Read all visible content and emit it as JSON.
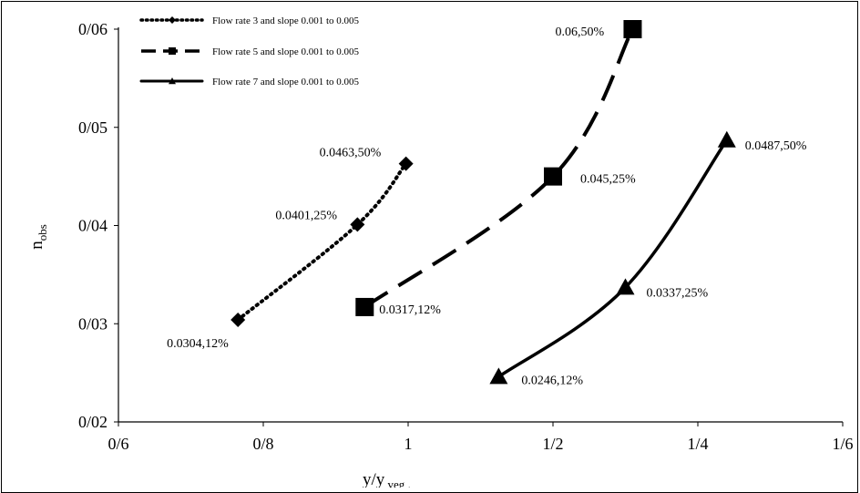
{
  "chart_data": {
    "type": "line",
    "xlabel_main": "y/y",
    "xlabel_sub": "veg",
    "xlabel_tail": " .",
    "ylabel_main": "n",
    "ylabel_sub": "obs",
    "xlim": [
      0.6,
      1.6
    ],
    "ylim": [
      0.02,
      0.06
    ],
    "x_ticks": [
      {
        "value": 0.6,
        "label": "0/6"
      },
      {
        "value": 0.8,
        "label": "0/8"
      },
      {
        "value": 1.0,
        "label": "1"
      },
      {
        "value": 1.2,
        "label": "1/2"
      },
      {
        "value": 1.4,
        "label": "1/4"
      },
      {
        "value": 1.6,
        "label": "1/6"
      }
    ],
    "y_ticks": [
      {
        "value": 0.02,
        "label": "0/02"
      },
      {
        "value": 0.03,
        "label": "0/03"
      },
      {
        "value": 0.04,
        "label": "0/04"
      },
      {
        "value": 0.05,
        "label": "0/05"
      },
      {
        "value": 0.06,
        "label": "0/06"
      }
    ],
    "grid": false,
    "legend_position": "top-left",
    "series": [
      {
        "name": "Flow rate 3 and slope 0.001 to 0.005",
        "line_style": "dotted",
        "marker": "diamond",
        "color": "#000000",
        "points": [
          {
            "x": 0.765,
            "y": 0.0304,
            "label": "0.0304,12%"
          },
          {
            "x": 0.93,
            "y": 0.0401,
            "label": "0.0401,25%"
          },
          {
            "x": 0.997,
            "y": 0.0463,
            "label": "0.0463,50%"
          }
        ]
      },
      {
        "name": "Flow rate 5 and slope 0.001 to 0.005",
        "line_style": "dashed",
        "marker": "square",
        "color": "#000000",
        "points": [
          {
            "x": 0.94,
            "y": 0.0317,
            "label": "0.0317,12%"
          },
          {
            "x": 1.2,
            "y": 0.045,
            "label": "0.045,25%"
          },
          {
            "x": 1.31,
            "y": 0.06,
            "label": "0.06,50%"
          }
        ]
      },
      {
        "name": "Flow rate 7 and slope 0.001 to 0.005",
        "line_style": "solid",
        "marker": "triangle",
        "color": "#000000",
        "points": [
          {
            "x": 1.125,
            "y": 0.0246,
            "label": "0.0246,12%"
          },
          {
            "x": 1.3,
            "y": 0.0337,
            "label": "0.0337,25%"
          },
          {
            "x": 1.44,
            "y": 0.0487,
            "label": "0.0487,50%"
          }
        ]
      }
    ]
  }
}
